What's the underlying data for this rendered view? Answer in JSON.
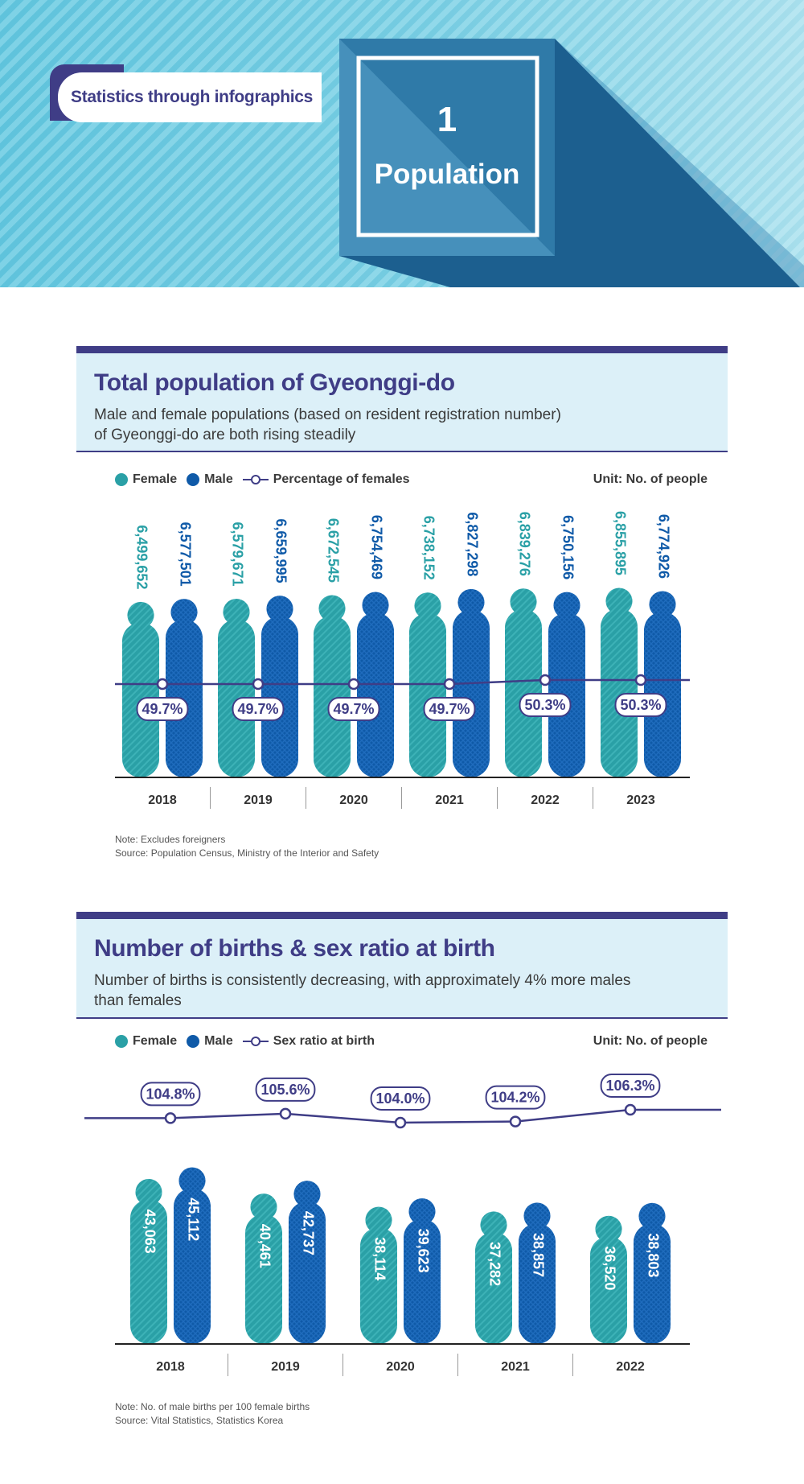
{
  "header": {
    "tag_label": "Statistics through infographics",
    "section_number": "1",
    "section_label": "Population"
  },
  "colors": {
    "female": "#2aa0a6",
    "male": "#0f5aa8",
    "line": "#3f3d86",
    "title": "#3f3d86",
    "panel": "#dcf0f8"
  },
  "chart_data": [
    {
      "type": "bar",
      "title": "Total population of Gyeonggi-do",
      "subtitle_lines": [
        "Male and female populations (based on resident registration number)",
        "of Gyeonggi-do are both rising steadily"
      ],
      "unit": "Unit: No. of people",
      "legend": {
        "female": "Female",
        "male": "Male",
        "line": "Percentage of females"
      },
      "categories": [
        "2018",
        "2019",
        "2020",
        "2021",
        "2022",
        "2023"
      ],
      "series": [
        {
          "name": "Female",
          "values": [
            6499652,
            6579671,
            6672545,
            6738152,
            6839276,
            6855895
          ],
          "labels": [
            "6,499,652",
            "6,579,671",
            "6,672,545",
            "6,738,152",
            "6,839,276",
            "6,855,895"
          ]
        },
        {
          "name": "Male",
          "values": [
            6577501,
            6659995,
            6754469,
            6827298,
            6750156,
            6774926
          ],
          "labels": [
            "6,577,501",
            "6,659,995",
            "6,754,469",
            "6,827,298",
            "6,750,156",
            "6,774,926"
          ]
        }
      ],
      "line_series": {
        "name": "Percentage of females",
        "values": [
          49.7,
          49.7,
          49.7,
          49.7,
          50.3,
          50.3
        ],
        "labels": [
          "49.7%",
          "49.7%",
          "49.7%",
          "49.7%",
          "50.3%",
          "50.3%"
        ]
      },
      "notes": [
        "Note: Excludes foreigners",
        "Source: Population Census, Ministry of the Interior and Safety"
      ]
    },
    {
      "type": "bar",
      "title": "Number of births & sex ratio at birth",
      "subtitle_lines": [
        "Number of births is consistently decreasing, with approximately 4% more males",
        "than females"
      ],
      "unit": "Unit: No. of people",
      "legend": {
        "female": "Female",
        "male": "Male",
        "line": "Sex ratio at birth"
      },
      "categories": [
        "2018",
        "2019",
        "2020",
        "2021",
        "2022"
      ],
      "series": [
        {
          "name": "Female",
          "values": [
            43063,
            40461,
            38114,
            37282,
            36520
          ],
          "labels": [
            "43,063",
            "40,461",
            "38,114",
            "37,282",
            "36,520"
          ]
        },
        {
          "name": "Male",
          "values": [
            45112,
            42737,
            39623,
            38857,
            38803
          ],
          "labels": [
            "45,112",
            "42,737",
            "39,623",
            "38,857",
            "38,803"
          ]
        }
      ],
      "line_series": {
        "name": "Sex ratio at birth",
        "values": [
          104.8,
          105.6,
          104.0,
          104.2,
          106.3
        ],
        "labels": [
          "104.8%",
          "105.6%",
          "104.0%",
          "104.2%",
          "106.3%"
        ]
      },
      "notes": [
        "Note: No. of male births per 100 female births",
        "Source: Vital Statistics, Statistics Korea"
      ]
    }
  ]
}
